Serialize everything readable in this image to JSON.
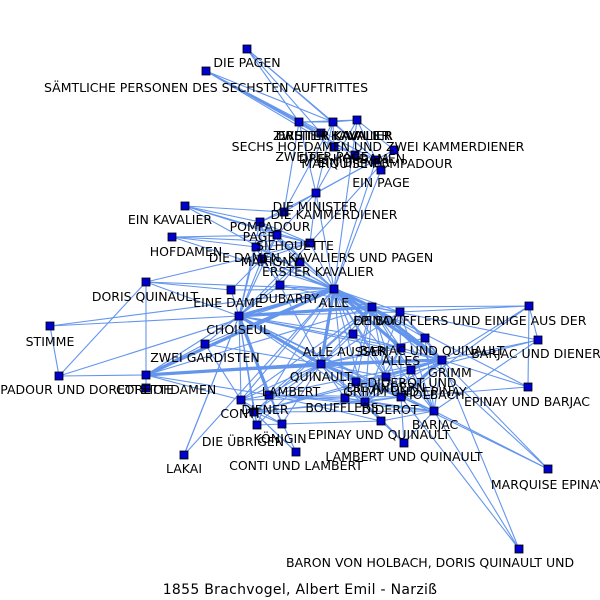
{
  "caption": "1855  Brachvogel,  Albert  Emil  -  Narziß",
  "colors": {
    "edge": "#6495ed",
    "node": "#0000cd",
    "node_border": "#000000",
    "label": "#000000"
  },
  "nodes": [
    {
      "id": "die_pagen",
      "label": "DIE PAGEN"
    },
    {
      "id": "saemtliche",
      "label": "SÄMTLICHE PERSONEN DES SECHSTEN AUFTRITTES"
    },
    {
      "id": "kavalier_a",
      "label": "ZWEITER KAVALIER"
    },
    {
      "id": "kavalier_b",
      "label": "DRITTER KAVALIER"
    },
    {
      "id": "kavalier_c",
      "label": "ERSTER KAVALIER"
    },
    {
      "id": "sechs_hofdamen",
      "label": "SECHS HOFDAMEN UND ZWEI KAMMERDIENER"
    },
    {
      "id": "zweiter_page",
      "label": "ZWEITER PAGE"
    },
    {
      "id": "drei_hofdamen",
      "label": "DREI HOFDAMEN"
    },
    {
      "id": "pompadour_a",
      "label": "MARQUISE POMPADOUR"
    },
    {
      "id": "ein_diener",
      "label": "EIN DIENER"
    },
    {
      "id": "ein_page",
      "label": "EIN PAGE"
    },
    {
      "id": "die_minister",
      "label": "DIE MINISTER"
    },
    {
      "id": "kammerdiener",
      "label": "DIE KAMMERDIENER"
    },
    {
      "id": "ein_kavalier",
      "label": "EIN KAVALIER"
    },
    {
      "id": "pompadour",
      "label": "POMPADOUR"
    },
    {
      "id": "page",
      "label": "PAGE"
    },
    {
      "id": "silhouette",
      "label": "SILHOUETTE"
    },
    {
      "id": "hofdamen",
      "label": "HOFDAMEN"
    },
    {
      "id": "die_damen",
      "label": "DIE DAMEN, KAVALIERS UND PAGEN"
    },
    {
      "id": "marigny",
      "label": "MARIGNY"
    },
    {
      "id": "erster_kavalier",
      "label": "ERSTER KAVALIER"
    },
    {
      "id": "doris",
      "label": "DORIS QUINAULT"
    },
    {
      "id": "dubarry",
      "label": "DUBARRY"
    },
    {
      "id": "eine_dame",
      "label": "EINE DAME"
    },
    {
      "id": "alle",
      "label": "ALLE"
    },
    {
      "id": "choiseul",
      "label": "CHOISEUL"
    },
    {
      "id": "boufflers_ein",
      "label": "DE BOUFFLERS UND EINIGE AUS DER"
    },
    {
      "id": "epinay_top",
      "label": "EPINAY"
    },
    {
      "id": "stimme",
      "label": "STIMME"
    },
    {
      "id": "marquise_right",
      "label": ""
    },
    {
      "id": "bariac_quinault",
      "label": "BARJAC UND QUINAULT"
    },
    {
      "id": "bariac_diener",
      "label": "BARJAC UND DIENER"
    },
    {
      "id": "alle_ausser",
      "label": "ALLE AUSSER"
    },
    {
      "id": "zwei_gardisten",
      "label": "ZWEI GARDISTEN"
    },
    {
      "id": "alles",
      "label": "ALLES"
    },
    {
      "id": "grimm",
      "label": "GRIMM"
    },
    {
      "id": "pomp_und_dor",
      "label": "POMPADOUR UND DORETTE"
    },
    {
      "id": "corette",
      "label": "CORETTE"
    },
    {
      "id": "hofdamen2",
      "label": "HOFDAMEN"
    },
    {
      "id": "quinault",
      "label": "QUINAULT"
    },
    {
      "id": "diderot_und",
      "label": "DIDEROT UND"
    },
    {
      "id": "die_andern",
      "label": "DIE ANDERN"
    },
    {
      "id": "grimm_und_epinay",
      "label": "GRIMM UND EPINAY"
    },
    {
      "id": "holbach",
      "label": "HOLBACH"
    },
    {
      "id": "epinay_barjac",
      "label": "EPINAY UND BARJAC"
    },
    {
      "id": "lambert",
      "label": "LAMBERT"
    },
    {
      "id": "boufflers",
      "label": "BOUFFLERS"
    },
    {
      "id": "diderot",
      "label": "DIDEROT"
    },
    {
      "id": "conti",
      "label": "CONTI"
    },
    {
      "id": "diener",
      "label": "DIENER"
    },
    {
      "id": "bariac",
      "label": "BARJAC"
    },
    {
      "id": "die_uebrigen",
      "label": "DIE ÜBRIGEN"
    },
    {
      "id": "koenigin",
      "label": "KÖNIGIN"
    },
    {
      "id": "epinay_quinault",
      "label": "EPINAY UND QUINAULT"
    },
    {
      "id": "lambert_quinault",
      "label": "LAMBERT UND QUINAULT"
    },
    {
      "id": "conti_lambert",
      "label": "CONTI UND LAMBERT"
    },
    {
      "id": "lakai",
      "label": "LAKAI"
    },
    {
      "id": "marquise_epinay",
      "label": "MARQUISE EPINAY"
    },
    {
      "id": "baron",
      "label": "BARON VON HOLBACH, DORIS QUINAULT UND"
    }
  ],
  "edges": [
    [
      "die_pagen",
      "kavalier_a"
    ],
    [
      "die_pagen",
      "kavalier_b"
    ],
    [
      "die_pagen",
      "sechs_hofdamen"
    ],
    [
      "die_pagen",
      "pompadour_a"
    ],
    [
      "saemtliche",
      "kavalier_a"
    ],
    [
      "saemtliche",
      "kavalier_b"
    ],
    [
      "saemtliche",
      "drei_hofdamen"
    ],
    [
      "saemtliche",
      "pompadour_a"
    ],
    [
      "saemtliche",
      "zweiter_page"
    ],
    [
      "saemtliche",
      "sechs_hofdamen"
    ],
    [
      "kavalier_a",
      "kavalier_b"
    ],
    [
      "kavalier_a",
      "kavalier_c"
    ],
    [
      "kavalier_b",
      "kavalier_c"
    ],
    [
      "kavalier_a",
      "drei_hofdamen"
    ],
    [
      "kavalier_b",
      "pompadour_a"
    ],
    [
      "kavalier_c",
      "ein_diener"
    ],
    [
      "kavalier_c",
      "ein_page"
    ],
    [
      "kavalier_b",
      "zweiter_page"
    ],
    [
      "zweiter_page",
      "pompadour_a"
    ],
    [
      "drei_hofdamen",
      "ein_diener"
    ],
    [
      "kavalier_a",
      "die_minister"
    ],
    [
      "kavalier_b",
      "die_minister"
    ],
    [
      "kavalier_c",
      "die_minister"
    ],
    [
      "pompadour_a",
      "die_minister"
    ],
    [
      "ein_page",
      "die_minister"
    ],
    [
      "die_minister",
      "kammerdiener"
    ],
    [
      "die_minister",
      "pompadour"
    ],
    [
      "die_minister",
      "alle"
    ],
    [
      "die_minister",
      "silhouette"
    ],
    [
      "die_minister",
      "page"
    ],
    [
      "kavalier_a",
      "kammerdiener"
    ],
    [
      "kavalier_b",
      "kammerdiener"
    ],
    [
      "kavalier_c",
      "alle"
    ],
    [
      "pompadour_a",
      "alle"
    ],
    [
      "ein_diener",
      "alle"
    ],
    [
      "ein_page",
      "silhouette"
    ],
    [
      "ein_kavalier",
      "kammerdiener"
    ],
    [
      "ein_kavalier",
      "pompadour"
    ],
    [
      "ein_kavalier",
      "alle"
    ],
    [
      "ein_kavalier",
      "silhouette"
    ],
    [
      "ein_kavalier",
      "page"
    ],
    [
      "pompadour",
      "kammerdiener"
    ],
    [
      "pompadour",
      "page"
    ],
    [
      "pompadour",
      "silhouette"
    ],
    [
      "pompadour",
      "marigny"
    ],
    [
      "pompadour",
      "erster_kavalier"
    ],
    [
      "pompadour",
      "alle"
    ],
    [
      "pompadour",
      "choiseul"
    ],
    [
      "pompadour",
      "dubarry"
    ],
    [
      "page",
      "silhouette"
    ],
    [
      "page",
      "marigny"
    ],
    [
      "page",
      "hofdamen"
    ],
    [
      "page",
      "choiseul"
    ],
    [
      "page",
      "alle"
    ],
    [
      "silhouette",
      "alle"
    ],
    [
      "silhouette",
      "marigny"
    ],
    [
      "silhouette",
      "choiseul"
    ],
    [
      "silhouette",
      "die_damen"
    ],
    [
      "hofdamen",
      "die_damen"
    ],
    [
      "hofdamen",
      "silhouette"
    ],
    [
      "hofdamen",
      "alle"
    ],
    [
      "die_damen",
      "marigny"
    ],
    [
      "die_damen",
      "alle"
    ],
    [
      "die_damen",
      "choiseul"
    ],
    [
      "marigny",
      "erster_kavalier"
    ],
    [
      "marigny",
      "dubarry"
    ],
    [
      "marigny",
      "choiseul"
    ],
    [
      "marigny",
      "alle"
    ],
    [
      "marigny",
      "boufflers_ein"
    ],
    [
      "erster_kavalier",
      "alle"
    ],
    [
      "erster_kavalier",
      "choiseul"
    ],
    [
      "erster_kavalier",
      "dubarry"
    ],
    [
      "doris",
      "choiseul"
    ],
    [
      "doris",
      "eine_dame"
    ],
    [
      "doris",
      "corette"
    ],
    [
      "doris",
      "pomp_und_dor"
    ],
    [
      "doris",
      "alle"
    ],
    [
      "doris",
      "silhouette"
    ],
    [
      "dubarry",
      "choiseul"
    ],
    [
      "dubarry",
      "alle"
    ],
    [
      "dubarry",
      "boufflers_ein"
    ],
    [
      "dubarry",
      "quinault"
    ],
    [
      "eine_dame",
      "choiseul"
    ],
    [
      "eine_dame",
      "alle"
    ],
    [
      "eine_dame",
      "marigny"
    ],
    [
      "stimme",
      "choiseul"
    ],
    [
      "stimme",
      "pomp_und_dor"
    ],
    [
      "stimme",
      "alle"
    ],
    [
      "choiseul",
      "alle"
    ],
    [
      "choiseul",
      "boufflers_ein"
    ],
    [
      "choiseul",
      "zwei_gardisten"
    ],
    [
      "choiseul",
      "alle_ausser"
    ],
    [
      "choiseul",
      "alles"
    ],
    [
      "choiseul",
      "quinault"
    ],
    [
      "choiseul",
      "lambert"
    ],
    [
      "choiseul",
      "conti"
    ],
    [
      "choiseul",
      "lakai"
    ],
    [
      "choiseul",
      "die_uebrigen"
    ],
    [
      "choiseul",
      "epinay_top"
    ],
    [
      "choiseul",
      "corette"
    ],
    [
      "choiseul",
      "grimm"
    ],
    [
      "choiseul",
      "diderot"
    ],
    [
      "choiseul",
      "holbach"
    ],
    [
      "choiseul",
      "bariac"
    ],
    [
      "choiseul",
      "koenigin"
    ],
    [
      "choiseul",
      "diener"
    ],
    [
      "alle",
      "boufflers_ein"
    ],
    [
      "alle",
      "epinay_top"
    ],
    [
      "alle",
      "alle_ausser"
    ],
    [
      "alle",
      "alles"
    ],
    [
      "alle",
      "quinault"
    ],
    [
      "alle",
      "lambert"
    ],
    [
      "alle",
      "grimm"
    ],
    [
      "alle",
      "holbach"
    ],
    [
      "alle",
      "diderot"
    ],
    [
      "alle",
      "bariac"
    ],
    [
      "alle",
      "conti"
    ],
    [
      "alle",
      "boufflers"
    ],
    [
      "alle",
      "corette"
    ],
    [
      "alle",
      "zwei_gardisten"
    ],
    [
      "alle",
      "die_andern"
    ],
    [
      "boufflers_ein",
      "epinay_top"
    ],
    [
      "boufflers_ein",
      "marquise_right"
    ],
    [
      "boufflers_ein",
      "bariac_quinault"
    ],
    [
      "boufflers_ein",
      "bariac_diener"
    ],
    [
      "boufflers_ein",
      "alles"
    ],
    [
      "boufflers_ein",
      "grimm"
    ],
    [
      "boufflers_ein",
      "holbach"
    ],
    [
      "boufflers_ein",
      "diderot"
    ],
    [
      "boufflers_ein",
      "quinault"
    ],
    [
      "boufflers_ein",
      "lambert"
    ],
    [
      "boufflers_ein",
      "bariac"
    ],
    [
      "boufflers_ein",
      "epinay_barjac"
    ],
    [
      "boufflers_ein",
      "conti"
    ],
    [
      "boufflers_ein",
      "boufflers"
    ],
    [
      "boufflers_ein",
      "diener"
    ],
    [
      "boufflers_ein",
      "alle_ausser"
    ],
    [
      "boufflers_ein",
      "die_andern"
    ],
    [
      "boufflers_ein",
      "grimm_und_epinay"
    ],
    [
      "boufflers_ein",
      "marquise_epinay"
    ],
    [
      "epinay_top",
      "marquise_right"
    ],
    [
      "epinay_top",
      "bariac_quinault"
    ],
    [
      "epinay_top",
      "grimm"
    ],
    [
      "epinay_top",
      "holbach"
    ],
    [
      "epinay_top",
      "diderot"
    ],
    [
      "epinay_top",
      "bariac"
    ],
    [
      "epinay_top",
      "quinault"
    ],
    [
      "marquise_right",
      "grimm"
    ],
    [
      "marquise_right",
      "bariac_diener"
    ],
    [
      "marquise_right",
      "epinay_barjac"
    ],
    [
      "marquise_right",
      "holbach"
    ],
    [
      "bariac_quinault",
      "grimm"
    ],
    [
      "bariac_quinault",
      "bariac"
    ],
    [
      "bariac_quinault",
      "quinault"
    ],
    [
      "bariac_diener",
      "grimm"
    ],
    [
      "bariac_diener",
      "bariac"
    ],
    [
      "bariac_diener",
      "diener"
    ],
    [
      "alle_ausser",
      "alles"
    ],
    [
      "alle_ausser",
      "quinault"
    ],
    [
      "alle_ausser",
      "grimm"
    ],
    [
      "alle_ausser",
      "holbach"
    ],
    [
      "zwei_gardisten",
      "corette"
    ],
    [
      "zwei_gardisten",
      "quinault"
    ],
    [
      "zwei_gardisten",
      "conti"
    ],
    [
      "alles",
      "grimm"
    ],
    [
      "alles",
      "holbach"
    ],
    [
      "alles",
      "diderot"
    ],
    [
      "alles",
      "quinault"
    ],
    [
      "alles",
      "die_andern"
    ],
    [
      "alles",
      "bariac"
    ],
    [
      "grimm",
      "holbach"
    ],
    [
      "grimm",
      "diderot"
    ],
    [
      "grimm",
      "die_andern"
    ],
    [
      "grimm",
      "epinay_barjac"
    ],
    [
      "grimm",
      "bariac"
    ],
    [
      "grimm",
      "quinault"
    ],
    [
      "grimm",
      "lambert"
    ],
    [
      "grimm",
      "grimm_und_epinay"
    ],
    [
      "grimm",
      "diener"
    ],
    [
      "pomp_und_dor",
      "corette"
    ],
    [
      "pomp_und_dor",
      "alle"
    ],
    [
      "corette",
      "quinault"
    ],
    [
      "corette",
      "conti"
    ],
    [
      "corette",
      "lambert"
    ],
    [
      "corette",
      "hofdamen2"
    ],
    [
      "corette",
      "boufflers_ein"
    ],
    [
      "corette",
      "grimm"
    ],
    [
      "quinault",
      "lambert"
    ],
    [
      "quinault",
      "diderot"
    ],
    [
      "quinault",
      "holbach"
    ],
    [
      "quinault",
      "bariac"
    ],
    [
      "quinault",
      "conti"
    ],
    [
      "quinault",
      "boufflers"
    ],
    [
      "quinault",
      "grimm_und_epinay"
    ],
    [
      "quinault",
      "die_andern"
    ],
    [
      "quinault",
      "diener"
    ],
    [
      "quinault",
      "die_uebrigen"
    ],
    [
      "quinault",
      "koenigin"
    ],
    [
      "quinault",
      "epinay_quinault"
    ],
    [
      "diderot_und",
      "grimm"
    ],
    [
      "diderot_und",
      "holbach"
    ],
    [
      "diderot_und",
      "diderot"
    ],
    [
      "die_andern",
      "holbach"
    ],
    [
      "die_andern",
      "diderot"
    ],
    [
      "grimm_und_epinay",
      "holbach"
    ],
    [
      "grimm_und_epinay",
      "diderot"
    ],
    [
      "holbach",
      "diderot"
    ],
    [
      "holbach",
      "bariac"
    ],
    [
      "holbach",
      "epinay_barjac"
    ],
    [
      "holbach",
      "lambert"
    ],
    [
      "holbach",
      "diener"
    ],
    [
      "holbach",
      "marquise_epinay"
    ],
    [
      "holbach",
      "baron"
    ],
    [
      "holbach",
      "lambert_quinault"
    ],
    [
      "lambert",
      "diderot"
    ],
    [
      "lambert",
      "boufflers"
    ],
    [
      "lambert",
      "conti"
    ],
    [
      "lambert",
      "koenigin"
    ],
    [
      "lambert",
      "die_uebrigen"
    ],
    [
      "lambert",
      "epinay_quinault"
    ],
    [
      "lambert",
      "bariac"
    ],
    [
      "boufflers",
      "diderot"
    ],
    [
      "boufflers",
      "conti"
    ],
    [
      "boufflers",
      "bariac"
    ],
    [
      "diderot",
      "bariac"
    ],
    [
      "diderot",
      "diener"
    ],
    [
      "diderot",
      "epinay_quinault"
    ],
    [
      "diderot",
      "lambert_quinault"
    ],
    [
      "conti",
      "diener"
    ],
    [
      "conti",
      "koenigin"
    ],
    [
      "conti",
      "die_uebrigen"
    ],
    [
      "conti",
      "conti_lambert"
    ],
    [
      "diener",
      "koenigin"
    ],
    [
      "diener",
      "bariac"
    ],
    [
      "diener",
      "conti_lambert"
    ],
    [
      "diener",
      "die_uebrigen"
    ],
    [
      "bariac",
      "epinay_quinault"
    ],
    [
      "bariac",
      "lambert_quinault"
    ],
    [
      "bariac",
      "marquise_epinay"
    ],
    [
      "bariac",
      "baron"
    ],
    [
      "die_uebrigen",
      "koenigin"
    ],
    [
      "koenigin",
      "epinay_quinault"
    ],
    [
      "epinay_quinault",
      "lambert_quinault"
    ],
    [
      "conti_lambert",
      "lambert"
    ],
    [
      "lakai",
      "choiseul"
    ],
    [
      "lakai",
      "alle"
    ],
    [
      "marquise_epinay",
      "grimm"
    ],
    [
      "baron",
      "grimm"
    ]
  ],
  "heavy_edges": [
    [
      "choiseul",
      "alle"
    ],
    [
      "choiseul",
      "quinault"
    ],
    [
      "alle",
      "quinault"
    ],
    [
      "alle",
      "boufflers_ein"
    ],
    [
      "choiseul",
      "boufflers_ein"
    ],
    [
      "quinault",
      "grimm"
    ],
    [
      "quinault",
      "holbach"
    ],
    [
      "corette",
      "quinault"
    ],
    [
      "corette",
      "alle"
    ],
    [
      "alle",
      "grimm"
    ],
    [
      "boufflers_ein",
      "grimm"
    ],
    [
      "grimm",
      "holbach"
    ],
    [
      "choiseul",
      "lambert"
    ],
    [
      "alle",
      "alles"
    ]
  ]
}
